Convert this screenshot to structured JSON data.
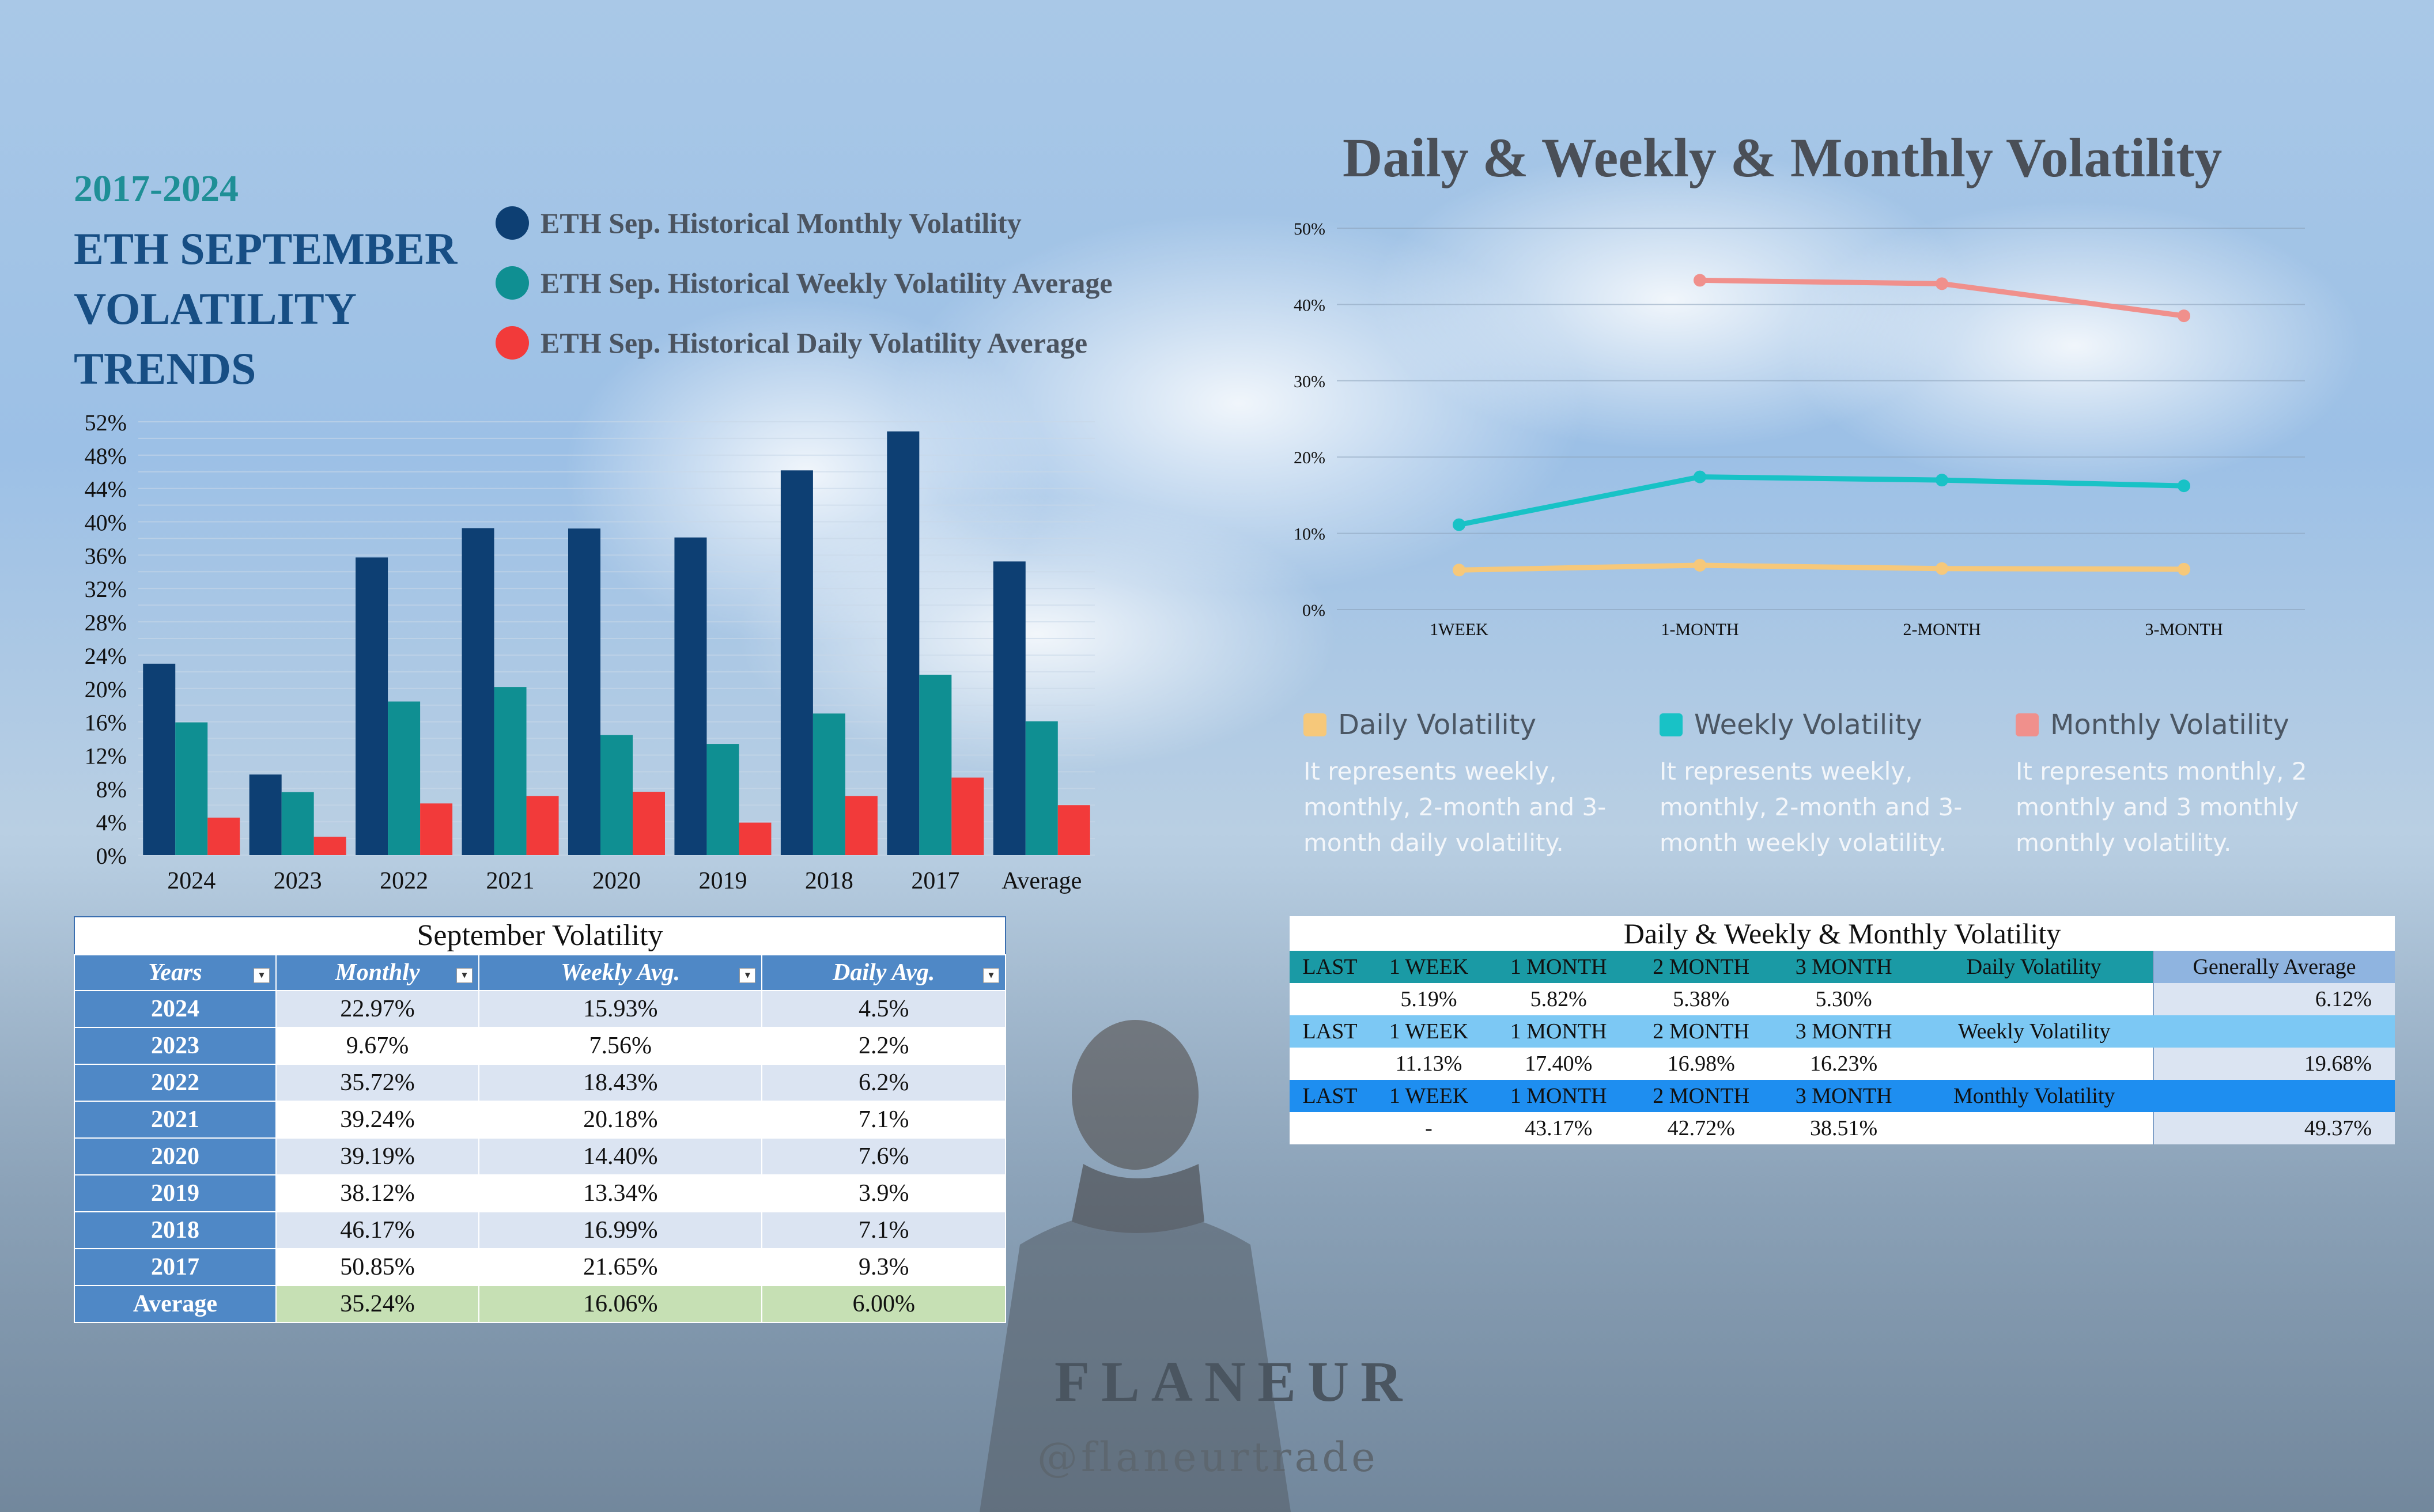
{
  "header": {
    "years": "2017-2024",
    "title_lines": [
      "ETH SEPTEMBER",
      "VOLATILITY",
      "TRENDS"
    ]
  },
  "legend_left": [
    {
      "label": "ETH Sep. Historical Monthly Volatility",
      "color": "#0d3f73"
    },
    {
      "label": "ETH Sep. Historical Weekly Volatility Average",
      "color": "#0f8f92"
    },
    {
      "label": "ETH Sep. Historical Daily Volatility Average",
      "color": "#f23a3a"
    }
  ],
  "right_title": "Daily & Weekly & Monthly Volatility",
  "chart_data": [
    {
      "type": "bar",
      "categories": [
        "2024",
        "2023",
        "2022",
        "2021",
        "2020",
        "2019",
        "2018",
        "2017",
        "Average"
      ],
      "series": [
        {
          "name": "ETH Sep. Historical Monthly Volatility",
          "color": "#0d3f73",
          "values": [
            22.97,
            9.67,
            35.72,
            39.24,
            39.19,
            38.12,
            46.17,
            50.85,
            35.24
          ]
        },
        {
          "name": "ETH Sep. Historical Weekly Volatility Average",
          "color": "#0f8f92",
          "values": [
            15.93,
            7.56,
            18.43,
            20.18,
            14.4,
            13.34,
            16.99,
            21.65,
            16.06
          ]
        },
        {
          "name": "ETH Sep. Historical Daily Volatility Average",
          "color": "#f23a3a",
          "values": [
            4.5,
            2.2,
            6.2,
            7.1,
            7.6,
            3.9,
            7.1,
            9.3,
            6.0
          ]
        }
      ],
      "yticks": [
        "0%",
        "4%",
        "8%",
        "12%",
        "16%",
        "20%",
        "24%",
        "28%",
        "32%",
        "36%",
        "40%",
        "44%",
        "48%",
        "52%"
      ],
      "ylim": [
        0,
        52
      ],
      "grid": true
    },
    {
      "type": "line",
      "categories": [
        "1WEEK",
        "1-MONTH",
        "2-MONTH",
        "3-MONTH"
      ],
      "series": [
        {
          "name": "Daily Volatility",
          "color": "#f6c87a",
          "values": [
            5.19,
            5.82,
            5.38,
            5.3
          ]
        },
        {
          "name": "Weekly Volatility",
          "color": "#18c2c6",
          "values": [
            11.13,
            17.4,
            16.98,
            16.23
          ]
        },
        {
          "name": "Monthly Volatility",
          "color": "#f0908c",
          "values": [
            null,
            43.17,
            42.72,
            38.51
          ]
        }
      ],
      "yticks": [
        "0%",
        "10%",
        "20%",
        "30%",
        "40%",
        "50%"
      ],
      "ylim": [
        0,
        50
      ],
      "grid": true
    }
  ],
  "right_legend": [
    {
      "name": "Daily Volatility",
      "color": "#f6c87a",
      "desc": "It represents weekly, monthly, 2-month and 3-month daily volatility."
    },
    {
      "name": "Weekly Volatility",
      "color": "#18c2c6",
      "desc": "It represents weekly, monthly, 2-month and 3-month weekly volatility."
    },
    {
      "name": "Monthly Volatility",
      "color": "#f0908c",
      "desc": "It represents monthly, 2 monthly and 3 monthly monthly volatility."
    }
  ],
  "sept_table": {
    "caption": "September Volatility",
    "headers": [
      "Years",
      "Monthly",
      "Weekly Avg.",
      "Daily Avg."
    ],
    "rows": [
      [
        "2024",
        "22.97%",
        "15.93%",
        "4.5%"
      ],
      [
        "2023",
        "9.67%",
        "7.56%",
        "2.2%"
      ],
      [
        "2022",
        "35.72%",
        "18.43%",
        "6.2%"
      ],
      [
        "2021",
        "39.24%",
        "20.18%",
        "7.1%"
      ],
      [
        "2020",
        "39.19%",
        "14.40%",
        "7.6%"
      ],
      [
        "2019",
        "38.12%",
        "13.34%",
        "3.9%"
      ],
      [
        "2018",
        "46.17%",
        "16.99%",
        "7.1%"
      ],
      [
        "2017",
        "50.85%",
        "21.65%",
        "9.3%"
      ]
    ],
    "average": [
      "Average",
      "35.24%",
      "16.06%",
      "6.00%"
    ]
  },
  "dwm_table": {
    "caption": "Daily & Weekly & Monthly Volatility",
    "rows": [
      [
        "LAST",
        "1 WEEK",
        "1 MONTH",
        "2 MONTH",
        "3 MONTH",
        "Daily Volatility",
        "Generally Average"
      ],
      [
        "",
        "5.19%",
        "5.82%",
        "5.38%",
        "5.30%",
        "",
        "6.12%"
      ],
      [
        "LAST",
        "1 WEEK",
        "1 MONTH",
        "2 MONTH",
        "3 MONTH",
        "Weekly Volatility",
        ""
      ],
      [
        "",
        "11.13%",
        "17.40%",
        "16.98%",
        "16.23%",
        "",
        "19.68%"
      ],
      [
        "LAST",
        "1 WEEK",
        "1 MONTH",
        "2 MONTH",
        "3 MONTH",
        "Monthly Volatility",
        ""
      ],
      [
        "",
        "-",
        "43.17%",
        "42.72%",
        "38.51%",
        "",
        "49.37%"
      ]
    ]
  },
  "brand": {
    "name": "FLANEUR",
    "handle": "@flaneurtrade"
  }
}
